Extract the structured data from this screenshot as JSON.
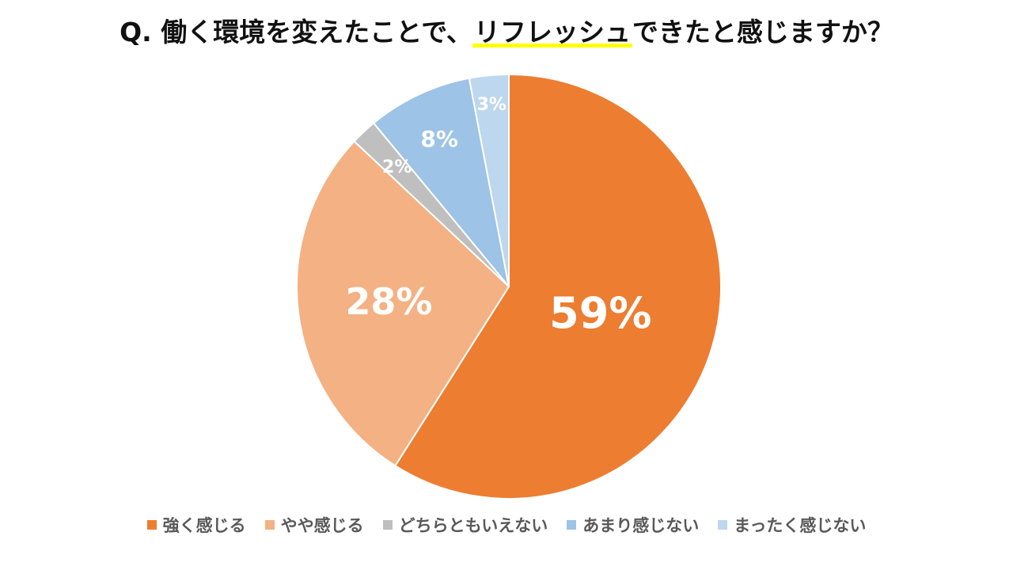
{
  "title": {
    "prefix": "Q. 働く環境を変えたことで、",
    "highlight": "リフレッシュ",
    "suffix": "できたと感じますか？"
  },
  "chart_data": {
    "type": "pie",
    "categories": [
      "強く感じる",
      "やや感じる",
      "どちらともいえない",
      "あまり感じない",
      "まったく感じない"
    ],
    "values": [
      59,
      28,
      2,
      8,
      3
    ],
    "labels": [
      "59%",
      "28%",
      "2%",
      "8%",
      "3%"
    ],
    "colors": [
      "#ed7d31",
      "#f4b183",
      "#bfbfbf",
      "#9dc3e6",
      "#bdd7ee"
    ],
    "start_angle": "12 o'clock",
    "direction": "clockwise",
    "legend_position": "bottom"
  },
  "legend": {
    "items": [
      {
        "label": "強く感じる",
        "color": "#ed7d31"
      },
      {
        "label": "やや感じる",
        "color": "#f4b183"
      },
      {
        "label": "どちらともいえない",
        "color": "#bfbfbf"
      },
      {
        "label": "あまり感じない",
        "color": "#9dc3e6"
      },
      {
        "label": "まったく感じない",
        "color": "#bdd7ee"
      }
    ]
  }
}
